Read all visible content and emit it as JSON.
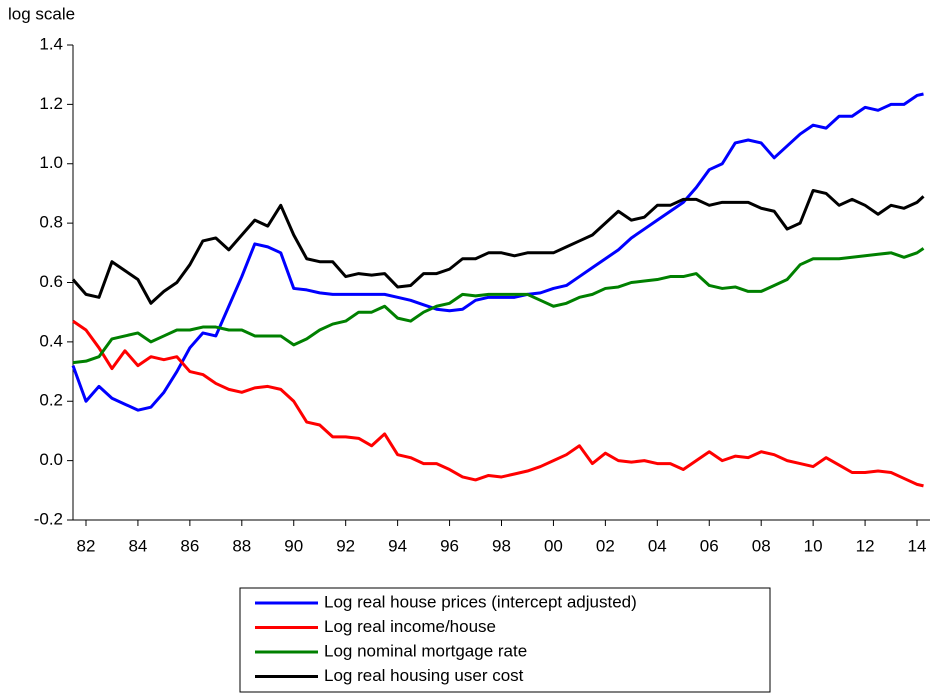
{
  "chart_data": {
    "type": "line",
    "axis_note": "log scale",
    "x": [
      1982,
      1982.5,
      1983,
      1983.5,
      1984,
      1984.5,
      1985,
      1985.5,
      1986,
      1986.5,
      1987,
      1987.5,
      1988,
      1988.5,
      1989,
      1989.5,
      1990,
      1990.5,
      1991,
      1991.5,
      1992,
      1992.5,
      1993,
      1993.5,
      1994,
      1994.5,
      1995,
      1995.5,
      1996,
      1996.5,
      1997,
      1997.5,
      1998,
      1998.5,
      1999,
      1999.5,
      2000,
      2000.5,
      2001,
      2001.5,
      2002,
      2002.5,
      2003,
      2003.5,
      2004,
      2004.5,
      2005,
      2005.5,
      2006,
      2006.5,
      2007,
      2007.5,
      2008,
      2008.5,
      2009,
      2009.5,
      2010,
      2010.5,
      2011,
      2011.5,
      2012,
      2012.5,
      2013,
      2013.5,
      2014,
      2014.5,
      2014.75
    ],
    "series": [
      {
        "name": "Log real house prices (intercept adjusted)",
        "color": "#0000ff",
        "values": [
          0.32,
          0.2,
          0.25,
          0.21,
          0.19,
          0.17,
          0.18,
          0.23,
          0.3,
          0.38,
          0.43,
          0.42,
          0.52,
          0.62,
          0.73,
          0.72,
          0.7,
          0.58,
          0.575,
          0.565,
          0.56,
          0.56,
          0.56,
          0.56,
          0.56,
          0.55,
          0.54,
          0.525,
          0.51,
          0.505,
          0.51,
          0.54,
          0.55,
          0.55,
          0.55,
          0.56,
          0.565,
          0.58,
          0.59,
          0.62,
          0.65,
          0.68,
          0.71,
          0.75,
          0.78,
          0.81,
          0.84,
          0.87,
          0.92,
          0.98,
          1.0,
          1.07,
          1.08,
          1.07,
          1.02,
          1.06,
          1.1,
          1.13,
          1.12,
          1.16,
          1.16,
          1.19,
          1.18,
          1.2,
          1.2,
          1.23,
          1.235
        ]
      },
      {
        "name": "Log real income/house",
        "color": "#ff0000",
        "values": [
          0.47,
          0.44,
          0.38,
          0.31,
          0.37,
          0.32,
          0.35,
          0.34,
          0.35,
          0.3,
          0.29,
          0.26,
          0.24,
          0.23,
          0.245,
          0.25,
          0.24,
          0.2,
          0.13,
          0.12,
          0.08,
          0.08,
          0.075,
          0.05,
          0.09,
          0.02,
          0.01,
          -0.01,
          -0.01,
          -0.03,
          -0.055,
          -0.065,
          -0.05,
          -0.055,
          -0.045,
          -0.035,
          -0.02,
          0.0,
          0.02,
          0.05,
          -0.01,
          0.025,
          0.0,
          -0.005,
          0.0,
          -0.01,
          -0.01,
          -0.03,
          0.0,
          0.03,
          0.0,
          0.015,
          0.01,
          0.03,
          0.02,
          0.0,
          -0.01,
          -0.02,
          0.01,
          -0.015,
          -0.04,
          -0.04,
          -0.035,
          -0.04,
          -0.06,
          -0.08,
          -0.085
        ]
      },
      {
        "name": "Log nominal mortgage rate",
        "color": "#008000",
        "values": [
          0.33,
          0.335,
          0.35,
          0.41,
          0.42,
          0.43,
          0.4,
          0.42,
          0.44,
          0.44,
          0.45,
          0.45,
          0.44,
          0.44,
          0.42,
          0.42,
          0.42,
          0.39,
          0.41,
          0.44,
          0.46,
          0.47,
          0.5,
          0.5,
          0.52,
          0.48,
          0.47,
          0.5,
          0.52,
          0.53,
          0.56,
          0.555,
          0.56,
          0.56,
          0.56,
          0.56,
          0.54,
          0.52,
          0.53,
          0.55,
          0.56,
          0.58,
          0.585,
          0.6,
          0.605,
          0.61,
          0.62,
          0.62,
          0.63,
          0.59,
          0.58,
          0.585,
          0.57,
          0.57,
          0.59,
          0.61,
          0.66,
          0.68,
          0.68,
          0.68,
          0.685,
          0.69,
          0.695,
          0.7,
          0.685,
          0.7,
          0.715
        ]
      },
      {
        "name": "Log real housing user cost",
        "color": "#000000",
        "values": [
          0.61,
          0.56,
          0.55,
          0.67,
          0.64,
          0.61,
          0.53,
          0.57,
          0.6,
          0.66,
          0.74,
          0.75,
          0.71,
          0.76,
          0.81,
          0.79,
          0.86,
          0.76,
          0.68,
          0.67,
          0.67,
          0.62,
          0.63,
          0.625,
          0.63,
          0.585,
          0.59,
          0.63,
          0.63,
          0.645,
          0.68,
          0.68,
          0.7,
          0.7,
          0.69,
          0.7,
          0.7,
          0.7,
          0.72,
          0.74,
          0.76,
          0.8,
          0.84,
          0.81,
          0.82,
          0.86,
          0.86,
          0.88,
          0.88,
          0.86,
          0.87,
          0.87,
          0.87,
          0.85,
          0.84,
          0.78,
          0.8,
          0.91,
          0.9,
          0.86,
          0.88,
          0.86,
          0.83,
          0.86,
          0.85,
          0.87,
          0.89
        ]
      }
    ],
    "xlim": [
      1982,
      2015
    ],
    "xticks": [
      {
        "value": 1982.5,
        "label": "82"
      },
      {
        "value": 1984.5,
        "label": "84"
      },
      {
        "value": 1986.5,
        "label": "86"
      },
      {
        "value": 1988.5,
        "label": "88"
      },
      {
        "value": 1990.5,
        "label": "90"
      },
      {
        "value": 1992.5,
        "label": "92"
      },
      {
        "value": 1994.5,
        "label": "94"
      },
      {
        "value": 1996.5,
        "label": "96"
      },
      {
        "value": 1998.5,
        "label": "98"
      },
      {
        "value": 2000.5,
        "label": "00"
      },
      {
        "value": 2002.5,
        "label": "02"
      },
      {
        "value": 2004.5,
        "label": "04"
      },
      {
        "value": 2006.5,
        "label": "06"
      },
      {
        "value": 2008.5,
        "label": "08"
      },
      {
        "value": 2010.5,
        "label": "10"
      },
      {
        "value": 2012.5,
        "label": "12"
      },
      {
        "value": 2014.5,
        "label": "14"
      }
    ],
    "ylim": [
      -0.2,
      1.4
    ],
    "yticks": [
      {
        "value": -0.2,
        "label": "-0.2"
      },
      {
        "value": 0,
        "label": "0.0"
      },
      {
        "value": 0.2,
        "label": "0.2"
      },
      {
        "value": 0.4,
        "label": "0.4"
      },
      {
        "value": 0.6,
        "label": "0.6"
      },
      {
        "value": 0.8,
        "label": "0.8"
      },
      {
        "value": 1.0,
        "label": "1.0"
      },
      {
        "value": 1.2,
        "label": "1.2"
      },
      {
        "value": 1.4,
        "label": "1.4"
      }
    ],
    "grid": false,
    "legend": "bottom"
  }
}
